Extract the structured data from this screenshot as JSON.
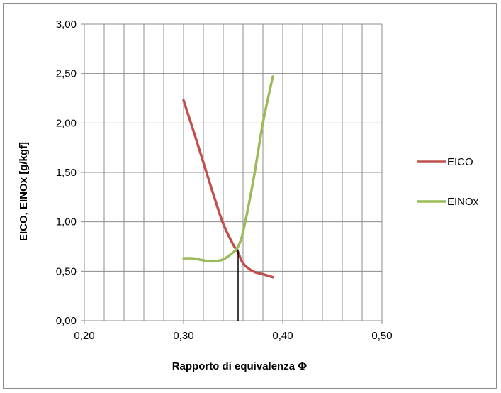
{
  "chart_data": {
    "type": "line",
    "xlabel_text": "Rapporto di equivalenza ",
    "xlabel_symbol": "Φ",
    "ylabel": "EICO, EINOx [g/kgf]",
    "xlim": [
      0.2,
      0.5
    ],
    "ylim": [
      0.0,
      3.0
    ],
    "x_ticks": [
      "0,20",
      "0,30",
      "0,40",
      "0,50"
    ],
    "y_ticks": [
      "0,00",
      "0,50",
      "1,00",
      "1,50",
      "2,00",
      "2,50",
      "3,00"
    ],
    "x_tick_values": [
      0.2,
      0.3,
      0.4,
      0.5
    ],
    "y_tick_values": [
      0.0,
      0.5,
      1.0,
      1.5,
      2.0,
      2.5,
      3.0
    ],
    "x_minor_step": 0.02,
    "grid": true,
    "legend_position": "right",
    "series": [
      {
        "name": "EICO",
        "color": "#c0504d",
        "x": [
          0.3,
          0.31,
          0.32,
          0.33,
          0.34,
          0.35,
          0.355,
          0.36,
          0.37,
          0.38,
          0.39
        ],
        "y": [
          2.23,
          1.92,
          1.6,
          1.28,
          0.98,
          0.77,
          0.69,
          0.58,
          0.5,
          0.47,
          0.44
        ]
      },
      {
        "name": "EINOx",
        "color": "#9bbb59",
        "x": [
          0.3,
          0.31,
          0.32,
          0.33,
          0.34,
          0.35,
          0.355,
          0.36,
          0.37,
          0.38,
          0.39
        ],
        "y": [
          0.63,
          0.63,
          0.61,
          0.6,
          0.62,
          0.69,
          0.75,
          0.9,
          1.4,
          2.0,
          2.47
        ]
      }
    ],
    "annotations": [
      {
        "type": "vertical-line",
        "x": 0.355,
        "y_from": 0.0,
        "y_to": 0.72,
        "color": "#000000"
      }
    ]
  }
}
